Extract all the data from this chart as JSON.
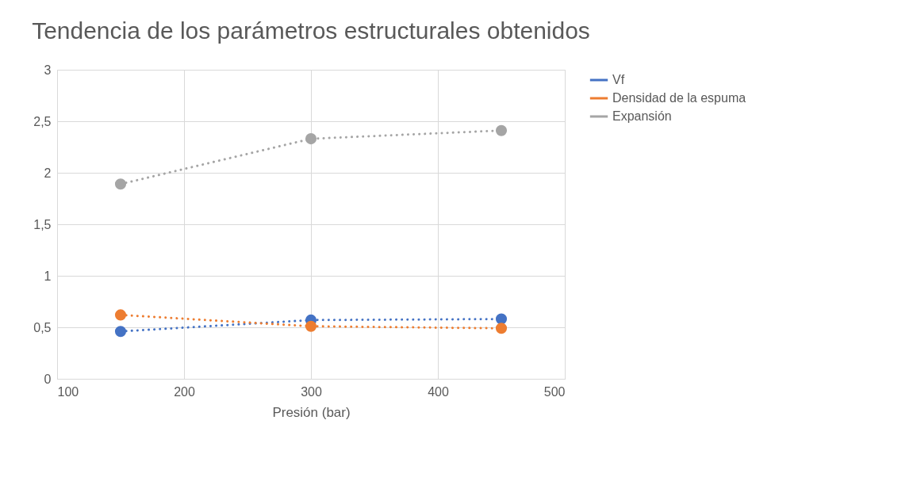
{
  "chart_data": {
    "type": "line",
    "title": "Tendencia de los parámetros estructurales obtenidos",
    "xlabel": "Presión (bar)",
    "x": [
      150,
      300,
      450
    ],
    "series": [
      {
        "name": "Vf",
        "color": "#4472c4",
        "values": [
          0.46,
          0.57,
          0.58
        ]
      },
      {
        "name": "Densidad de la espuma",
        "color": "#ed7d31",
        "values": [
          0.62,
          0.51,
          0.49
        ]
      },
      {
        "name": "Expansión",
        "color": "#a5a5a5",
        "values": [
          1.89,
          2.33,
          2.41
        ]
      }
    ],
    "xlim": [
      100,
      500
    ],
    "xticks": [
      100,
      200,
      300,
      400,
      500
    ],
    "ylim": [
      0,
      3
    ],
    "yticks": [
      0,
      {
        "value": 0.5,
        "label": "0,5"
      },
      1,
      {
        "value": 1.5,
        "label": "1,5"
      },
      2,
      {
        "value": 2.5,
        "label": "2,5"
      },
      3
    ],
    "grid": true,
    "legend": "right",
    "marker": "circle",
    "line_style": "dotted"
  }
}
